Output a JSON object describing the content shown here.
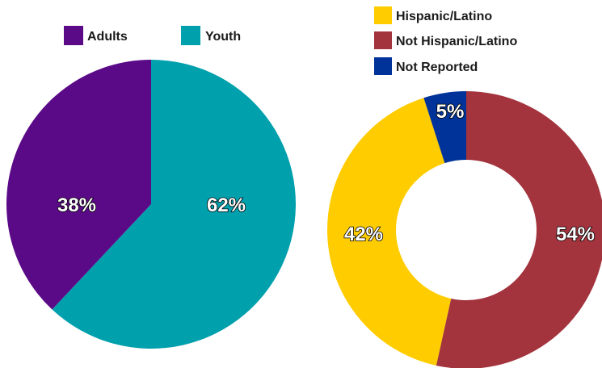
{
  "chart_data": [
    {
      "type": "pie",
      "legend_position": "top",
      "categories": [
        "Adults",
        "Youth"
      ],
      "values": [
        38,
        62
      ],
      "labels": [
        "38%",
        "62%"
      ],
      "colors": [
        "#5b0a87",
        "#00a0ad"
      ]
    },
    {
      "type": "pie",
      "style": "donut",
      "legend_position": "top-left",
      "categories": [
        "Hispanic/Latino",
        "Not Hispanic/Latino",
        "Not Reported"
      ],
      "values": [
        42,
        54,
        5
      ],
      "labels": [
        "42%",
        "54%",
        "5%"
      ],
      "colors": [
        "#ffcc00",
        "#a3333d",
        "#003399"
      ]
    }
  ]
}
